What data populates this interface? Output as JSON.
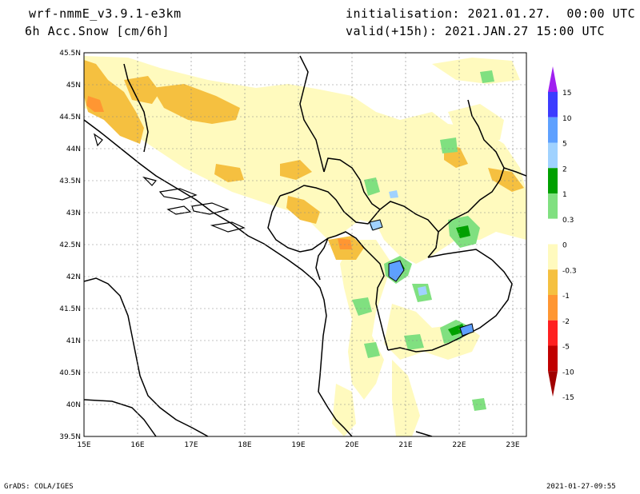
{
  "header": {
    "model": "wrf-nmmE_v3.9.1-e3km",
    "field": "6h Acc.Snow [cm/6h]",
    "init": "initialisation: 2021.01.27.  00:00 UTC",
    "valid": "valid(+15h): 2021.JAN.27 15:00 UTC"
  },
  "map": {
    "lon_ticks": [
      "15E",
      "16E",
      "17E",
      "18E",
      "19E",
      "20E",
      "21E",
      "22E",
      "23E"
    ],
    "lat_ticks": [
      "45.5N",
      "45N",
      "44.5N",
      "44N",
      "43.5N",
      "43N",
      "42.5N",
      "42N",
      "41.5N",
      "41N",
      "40.5N",
      "40N",
      "39.5N"
    ],
    "land_fill": "#ffffff",
    "border_color": "#000000"
  },
  "legend": {
    "labels": [
      "15",
      "10",
      "5",
      "2",
      "1",
      "0.3",
      "0",
      "-0.3",
      "-1",
      "-2",
      "-5",
      "-10",
      "-15"
    ],
    "colors": [
      "#a020f0",
      "#3c3cff",
      "#5ea0ff",
      "#a0d2ff",
      "#00a000",
      "#80e080",
      "#ffffff",
      "#fffabe",
      "#f5c040",
      "#ff9632",
      "#ff2020",
      "#c00000",
      "#a00000"
    ]
  },
  "footer": {
    "left": "GrADS: COLA/IGES",
    "right": "2021-01-27-09:55"
  }
}
